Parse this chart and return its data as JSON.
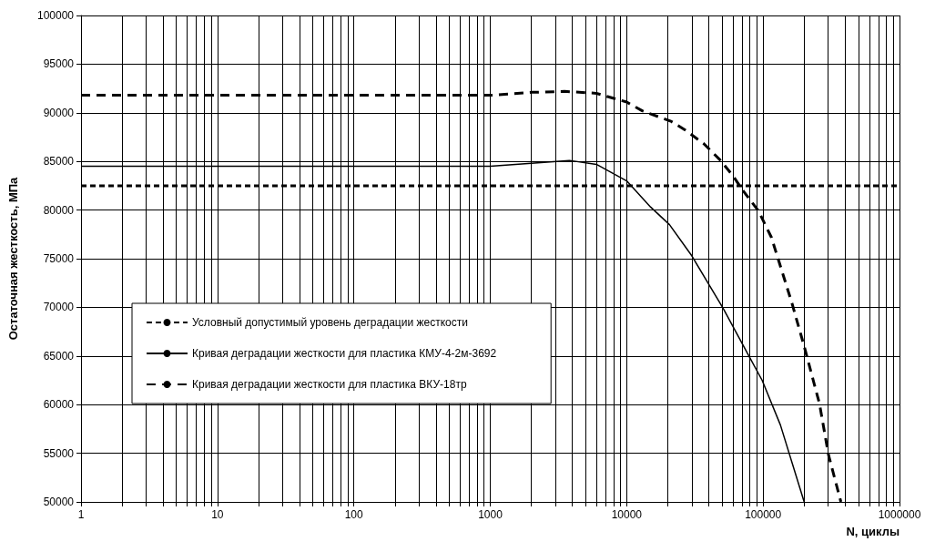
{
  "chart_data": {
    "type": "line",
    "xlabel": "N, циклы",
    "ylabel": "Остаточная жесткость, МПа",
    "log": "x",
    "xlim": [
      1,
      1000000
    ],
    "xticks": [
      1,
      10,
      100,
      1000,
      10000,
      100000,
      1000000
    ],
    "ylim": [
      50000,
      100000
    ],
    "yticks": [
      50000,
      55000,
      60000,
      65000,
      70000,
      75000,
      80000,
      85000,
      90000,
      95000,
      100000
    ],
    "grid": true,
    "legend": "bottom left",
    "marker": "none",
    "series": [
      {
        "name": "Условный допустимый уровень деградации жесткости",
        "color": "#000000",
        "line_style": "dotted",
        "x": [
          1,
          1000000
        ],
        "values": [
          82500,
          82500
        ]
      },
      {
        "name": "Кривая деградации жесткости для пластика КМУ-4-2м-3692",
        "color": "#000000",
        "line_style": "solid",
        "x": [
          1,
          10,
          100,
          1000,
          2000,
          3800,
          6000,
          10000,
          15000,
          20600,
          30000,
          50900,
          79400,
          98400,
          134000,
          200000
        ],
        "values": [
          84500,
          84500,
          84500,
          84500,
          84800,
          85100,
          84700,
          83000,
          80300,
          78500,
          75300,
          69900,
          64900,
          62500,
          57900,
          50000
        ]
      },
      {
        "name": "Кривая деградации жесткости для пластика ВКУ-18тр",
        "color": "#000000",
        "line_style": "dashed",
        "x": [
          1,
          10,
          100,
          1000,
          2000,
          3500,
          6000,
          10000,
          13000,
          21300,
          27000,
          36900,
          48000,
          60300,
          70300,
          92600,
          115000,
          163000,
          200000,
          259000,
          302000,
          372000
        ],
        "values": [
          91800,
          91800,
          91800,
          91800,
          92100,
          92200,
          92000,
          91100,
          90200,
          89100,
          88200,
          86800,
          85200,
          83500,
          82100,
          79900,
          77200,
          70400,
          66000,
          60100,
          54800,
          50000
        ]
      }
    ]
  }
}
